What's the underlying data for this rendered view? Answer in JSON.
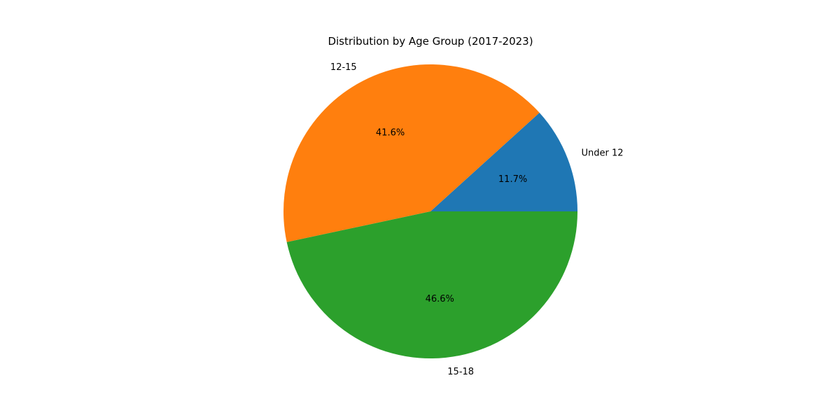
{
  "chart_data": {
    "type": "pie",
    "title": "Distribution by Age Group (2017-2023)",
    "categories": [
      "Under 12",
      "12-15",
      "15-18"
    ],
    "values": [
      11.7,
      41.6,
      46.6
    ],
    "percent_labels": [
      "11.7%",
      "41.6%",
      "46.6%"
    ],
    "colors": [
      "#1f77b4",
      "#ff7f0e",
      "#2ca02c"
    ],
    "start_angle": 0,
    "direction": "counterclockwise",
    "legend": "none"
  }
}
